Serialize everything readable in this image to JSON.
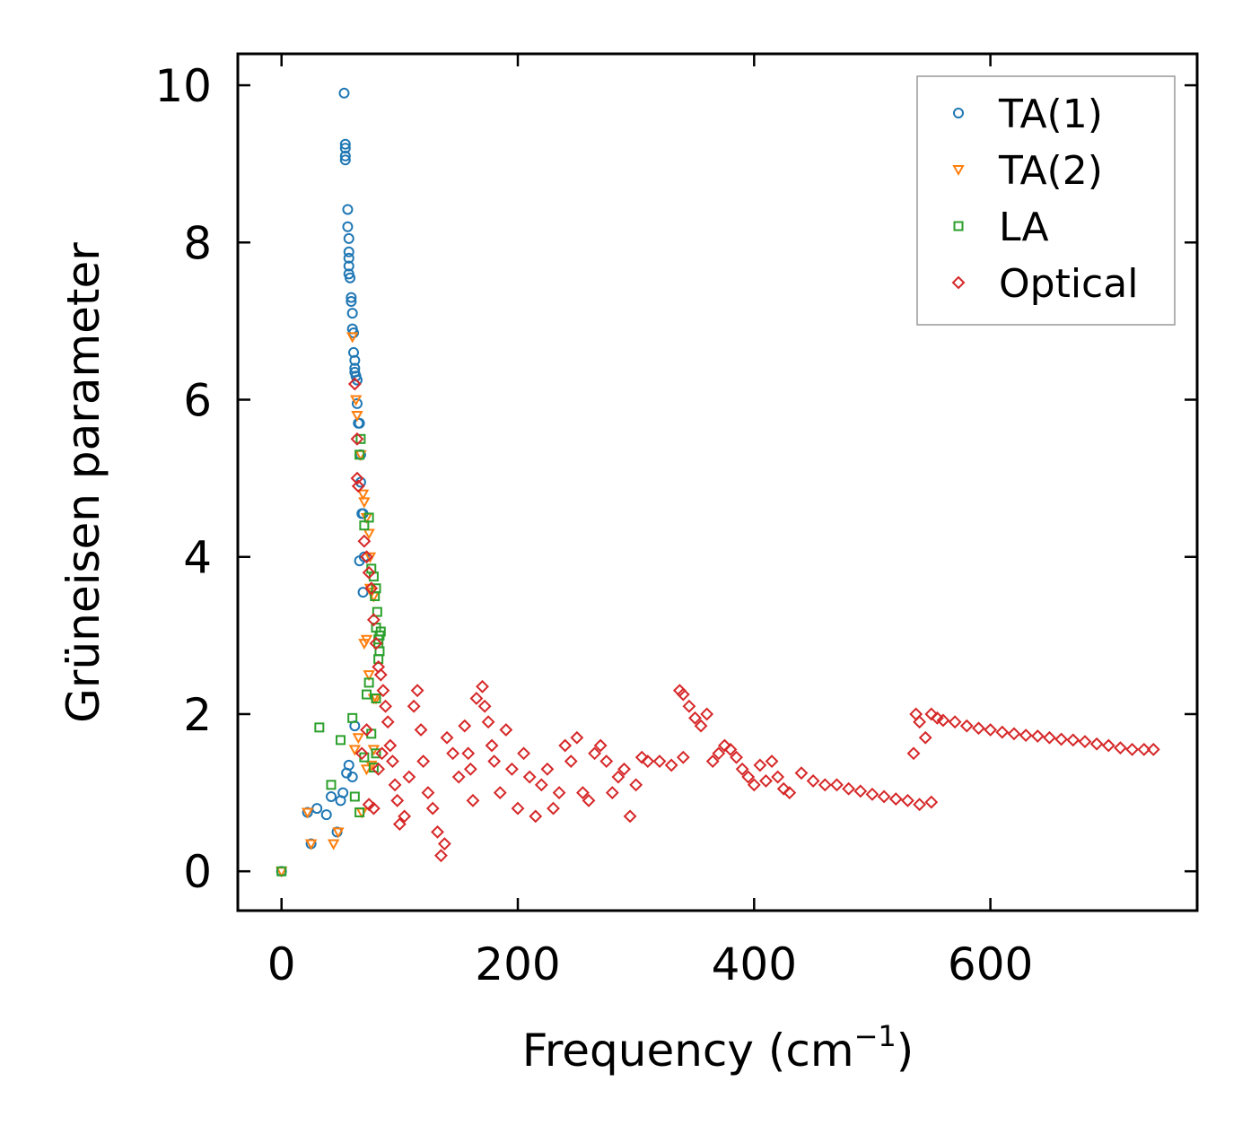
{
  "chart_data": {
    "type": "scatter",
    "title": "",
    "xlabel": "Frequency (cm",
    "xlabel_sup": "−1",
    "xlabel_close": ")",
    "ylabel": "Grüneisen parameter",
    "xlim": [
      -37,
      775
    ],
    "ylim": [
      -0.5,
      10.4
    ],
    "xticks": [
      0,
      200,
      400,
      600
    ],
    "xtick_labels": [
      "0",
      "200",
      "400",
      "600"
    ],
    "yticks": [
      0,
      2,
      4,
      6,
      8,
      10
    ],
    "ytick_labels": [
      "0",
      "2",
      "4",
      "6",
      "8",
      "10"
    ],
    "legend_position": "top-right",
    "grid": false,
    "series": [
      {
        "name": "TA(1)",
        "marker": "circle",
        "color": "#1f77b4",
        "points": [
          [
            0,
            0
          ],
          [
            22,
            0.75
          ],
          [
            25,
            0.35
          ],
          [
            30,
            0.8
          ],
          [
            38,
            0.72
          ],
          [
            42,
            0.95
          ],
          [
            47,
            0.5
          ],
          [
            50,
            0.9
          ],
          [
            52,
            1.0
          ],
          [
            55,
            1.25
          ],
          [
            57,
            1.35
          ],
          [
            60,
            1.2
          ],
          [
            62,
            1.85
          ],
          [
            53,
            9.9
          ],
          [
            54,
            9.25
          ],
          [
            54,
            9.2
          ],
          [
            54,
            9.1
          ],
          [
            54,
            9.05
          ],
          [
            56,
            8.42
          ],
          [
            56,
            8.2
          ],
          [
            57,
            8.05
          ],
          [
            57,
            7.88
          ],
          [
            57,
            7.8
          ],
          [
            57,
            7.7
          ],
          [
            57,
            7.6
          ],
          [
            58,
            7.55
          ],
          [
            59,
            7.3
          ],
          [
            59,
            7.25
          ],
          [
            60,
            7.1
          ],
          [
            60,
            6.9
          ],
          [
            61,
            6.85
          ],
          [
            61,
            6.6
          ],
          [
            62,
            6.5
          ],
          [
            62,
            6.4
          ],
          [
            62,
            6.35
          ],
          [
            63,
            6.3
          ],
          [
            64,
            6.25
          ],
          [
            64,
            5.95
          ],
          [
            65,
            5.7
          ],
          [
            66,
            5.7
          ],
          [
            67,
            5.3
          ],
          [
            67,
            4.95
          ],
          [
            68,
            4.55
          ],
          [
            69,
            4.55
          ],
          [
            66,
            3.95
          ],
          [
            70,
            4.0
          ],
          [
            69,
            3.55
          ]
        ]
      },
      {
        "name": "TA(2)",
        "marker": "triangle-down",
        "color": "#ff7f0e",
        "points": [
          [
            0,
            0
          ],
          [
            22,
            0.75
          ],
          [
            25,
            0.35
          ],
          [
            44,
            0.35
          ],
          [
            48,
            0.5
          ],
          [
            62,
            1.55
          ],
          [
            65,
            1.7
          ],
          [
            68,
            0.75
          ],
          [
            72,
            1.3
          ],
          [
            76,
            1.35
          ],
          [
            78,
            1.55
          ],
          [
            74,
            2.5
          ],
          [
            78,
            2.2
          ],
          [
            80,
            2.2
          ],
          [
            70,
            2.9
          ],
          [
            72,
            2.95
          ],
          [
            75,
            3.6
          ],
          [
            76,
            3.55
          ],
          [
            78,
            3.5
          ],
          [
            75,
            4.0
          ],
          [
            74,
            4.3
          ],
          [
            72,
            4.5
          ],
          [
            70,
            4.7
          ],
          [
            69,
            4.8
          ],
          [
            67,
            5.3
          ],
          [
            63,
            6.0
          ],
          [
            60,
            6.8
          ],
          [
            64,
            5.8
          ]
        ]
      },
      {
        "name": "LA",
        "marker": "square",
        "color": "#2ca02c",
        "points": [
          [
            0,
            0
          ],
          [
            32,
            1.83
          ],
          [
            42,
            1.1
          ],
          [
            50,
            1.67
          ],
          [
            60,
            1.95
          ],
          [
            62,
            0.95
          ],
          [
            66,
            0.75
          ],
          [
            70,
            1.45
          ],
          [
            72,
            2.25
          ],
          [
            74,
            2.4
          ],
          [
            78,
            1.32
          ],
          [
            80,
            1.5
          ],
          [
            76,
            1.75
          ],
          [
            80,
            2.2
          ],
          [
            82,
            2.7
          ],
          [
            83,
            2.8
          ],
          [
            82,
            2.9
          ],
          [
            83,
            3.0
          ],
          [
            80,
            3.1
          ],
          [
            81,
            3.3
          ],
          [
            79,
            3.5
          ],
          [
            78,
            3.75
          ],
          [
            74,
            4.5
          ],
          [
            66,
            5.3
          ],
          [
            67,
            5.5
          ],
          [
            70,
            4.4
          ],
          [
            76,
            3.85
          ],
          [
            80,
            3.6
          ],
          [
            82,
            2.95
          ],
          [
            84,
            3.05
          ]
        ]
      },
      {
        "name": "Optical",
        "marker": "diamond",
        "color": "#d62728",
        "points": [
          [
            62,
            6.2
          ],
          [
            64,
            5.5
          ],
          [
            64,
            5.0
          ],
          [
            65,
            4.9
          ],
          [
            70,
            4.2
          ],
          [
            72,
            4.0
          ],
          [
            74,
            3.8
          ],
          [
            76,
            3.6
          ],
          [
            78,
            3.2
          ],
          [
            80,
            2.9
          ],
          [
            82,
            2.6
          ],
          [
            84,
            2.5
          ],
          [
            86,
            2.3
          ],
          [
            88,
            2.1
          ],
          [
            68,
            1.5
          ],
          [
            72,
            1.8
          ],
          [
            74,
            0.85
          ],
          [
            78,
            0.8
          ],
          [
            82,
            1.3
          ],
          [
            85,
            1.5
          ],
          [
            90,
            1.9
          ],
          [
            92,
            1.6
          ],
          [
            94,
            1.4
          ],
          [
            96,
            1.1
          ],
          [
            98,
            0.9
          ],
          [
            100,
            0.6
          ],
          [
            104,
            0.7
          ],
          [
            108,
            1.2
          ],
          [
            112,
            2.1
          ],
          [
            115,
            2.3
          ],
          [
            118,
            1.8
          ],
          [
            120,
            1.4
          ],
          [
            124,
            1.0
          ],
          [
            128,
            0.8
          ],
          [
            132,
            0.5
          ],
          [
            135,
            0.2
          ],
          [
            138,
            0.35
          ],
          [
            140,
            1.7
          ],
          [
            145,
            1.5
          ],
          [
            150,
            1.2
          ],
          [
            155,
            1.85
          ],
          [
            158,
            1.5
          ],
          [
            160,
            1.3
          ],
          [
            162,
            0.9
          ],
          [
            165,
            2.2
          ],
          [
            170,
            2.35
          ],
          [
            172,
            2.1
          ],
          [
            175,
            1.9
          ],
          [
            178,
            1.6
          ],
          [
            180,
            1.4
          ],
          [
            185,
            1.0
          ],
          [
            190,
            1.8
          ],
          [
            195,
            1.3
          ],
          [
            200,
            0.8
          ],
          [
            205,
            1.5
          ],
          [
            210,
            1.2
          ],
          [
            215,
            0.7
          ],
          [
            220,
            1.1
          ],
          [
            225,
            1.3
          ],
          [
            230,
            0.8
          ],
          [
            235,
            1.0
          ],
          [
            240,
            1.6
          ],
          [
            245,
            1.4
          ],
          [
            250,
            1.7
          ],
          [
            255,
            1.0
          ],
          [
            260,
            0.9
          ],
          [
            265,
            1.5
          ],
          [
            270,
            1.6
          ],
          [
            275,
            1.4
          ],
          [
            280,
            1.0
          ],
          [
            285,
            1.2
          ],
          [
            290,
            1.3
          ],
          [
            295,
            0.7
          ],
          [
            300,
            1.1
          ],
          [
            305,
            1.45
          ],
          [
            310,
            1.4
          ],
          [
            320,
            1.4
          ],
          [
            330,
            1.35
          ],
          [
            340,
            1.45
          ],
          [
            337,
            2.3
          ],
          [
            340,
            2.25
          ],
          [
            345,
            2.1
          ],
          [
            350,
            1.95
          ],
          [
            355,
            1.85
          ],
          [
            360,
            2.0
          ],
          [
            365,
            1.4
          ],
          [
            370,
            1.5
          ],
          [
            375,
            1.6
          ],
          [
            380,
            1.55
          ],
          [
            385,
            1.45
          ],
          [
            390,
            1.3
          ],
          [
            395,
            1.2
          ],
          [
            400,
            1.1
          ],
          [
            405,
            1.35
          ],
          [
            410,
            1.15
          ],
          [
            415,
            1.4
          ],
          [
            420,
            1.2
          ],
          [
            425,
            1.05
          ],
          [
            430,
            1.0
          ],
          [
            440,
            1.25
          ],
          [
            450,
            1.15
          ],
          [
            460,
            1.1
          ],
          [
            470,
            1.1
          ],
          [
            480,
            1.05
          ],
          [
            490,
            1.02
          ],
          [
            500,
            0.98
          ],
          [
            510,
            0.95
          ],
          [
            520,
            0.92
          ],
          [
            530,
            0.9
          ],
          [
            540,
            0.85
          ],
          [
            550,
            0.88
          ],
          [
            535,
            1.5
          ],
          [
            537,
            2.0
          ],
          [
            540,
            1.9
          ],
          [
            545,
            1.7
          ],
          [
            550,
            2.0
          ],
          [
            555,
            1.95
          ],
          [
            560,
            1.92
          ],
          [
            570,
            1.9
          ],
          [
            580,
            1.85
          ],
          [
            590,
            1.82
          ],
          [
            600,
            1.8
          ],
          [
            610,
            1.77
          ],
          [
            620,
            1.75
          ],
          [
            630,
            1.73
          ],
          [
            640,
            1.72
          ],
          [
            650,
            1.7
          ],
          [
            660,
            1.68
          ],
          [
            670,
            1.67
          ],
          [
            680,
            1.65
          ],
          [
            690,
            1.62
          ],
          [
            700,
            1.6
          ],
          [
            710,
            1.57
          ],
          [
            720,
            1.55
          ],
          [
            730,
            1.55
          ],
          [
            738,
            1.55
          ]
        ]
      }
    ]
  }
}
